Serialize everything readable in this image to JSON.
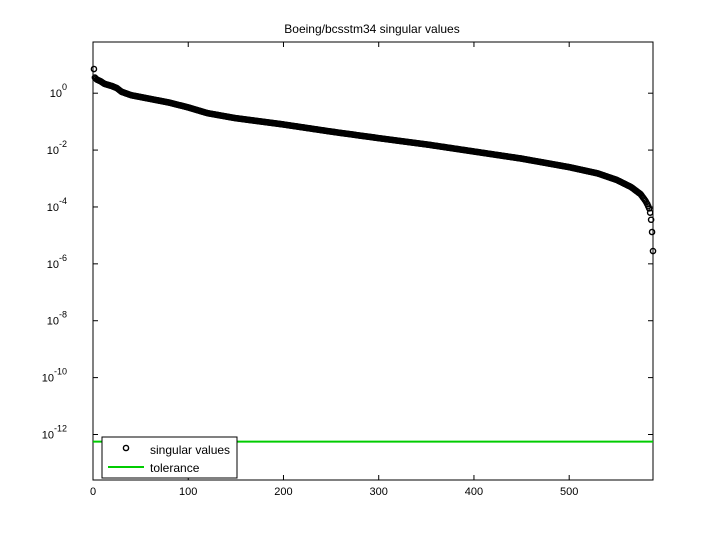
{
  "chart_data": {
    "type": "scatter",
    "title": "Boeing/bcsstm34 singular values",
    "xlabel": "",
    "ylabel": "",
    "xlim": [
      0,
      588
    ],
    "ylim_log10": [
      -13.6,
      1.8
    ],
    "y_scale": "log",
    "grid": false,
    "legend_position": "bottom-left",
    "x_ticks": [
      "0",
      "100",
      "200",
      "300",
      "400",
      "500"
    ],
    "y_ticks": [
      {
        "base": "10",
        "exp": "0"
      },
      {
        "base": "10",
        "exp": "-2"
      },
      {
        "base": "10",
        "exp": "-4"
      },
      {
        "base": "10",
        "exp": "-6"
      },
      {
        "base": "10",
        "exp": "-8"
      },
      {
        "base": "10",
        "exp": "-10"
      },
      {
        "base": "10",
        "exp": "-12"
      }
    ],
    "series": [
      {
        "name": "singular values",
        "marker": "circle",
        "color": "#000000",
        "x_range": [
          1,
          588
        ],
        "log10_profile": [
          [
            1,
            0.85
          ],
          [
            2,
            0.55
          ],
          [
            4,
            0.48
          ],
          [
            8,
            0.42
          ],
          [
            12,
            0.33
          ],
          [
            20,
            0.25
          ],
          [
            25,
            0.18
          ],
          [
            30,
            0.05
          ],
          [
            40,
            -0.07
          ],
          [
            60,
            -0.2
          ],
          [
            80,
            -0.33
          ],
          [
            100,
            -0.5
          ],
          [
            120,
            -0.7
          ],
          [
            150,
            -0.88
          ],
          [
            200,
            -1.1
          ],
          [
            250,
            -1.35
          ],
          [
            300,
            -1.58
          ],
          [
            350,
            -1.8
          ],
          [
            400,
            -2.05
          ],
          [
            450,
            -2.3
          ],
          [
            500,
            -2.6
          ],
          [
            530,
            -2.82
          ],
          [
            550,
            -3.05
          ],
          [
            565,
            -3.3
          ],
          [
            575,
            -3.55
          ],
          [
            580,
            -3.78
          ],
          [
            582,
            -3.9
          ],
          [
            584,
            -4.05
          ],
          [
            585,
            -4.2
          ],
          [
            586,
            -4.45
          ],
          [
            587,
            -4.88
          ],
          [
            588,
            -5.55
          ]
        ]
      },
      {
        "name": "tolerance",
        "type": "line",
        "color": "#00cc00",
        "value_log10": -12.25
      }
    ]
  }
}
